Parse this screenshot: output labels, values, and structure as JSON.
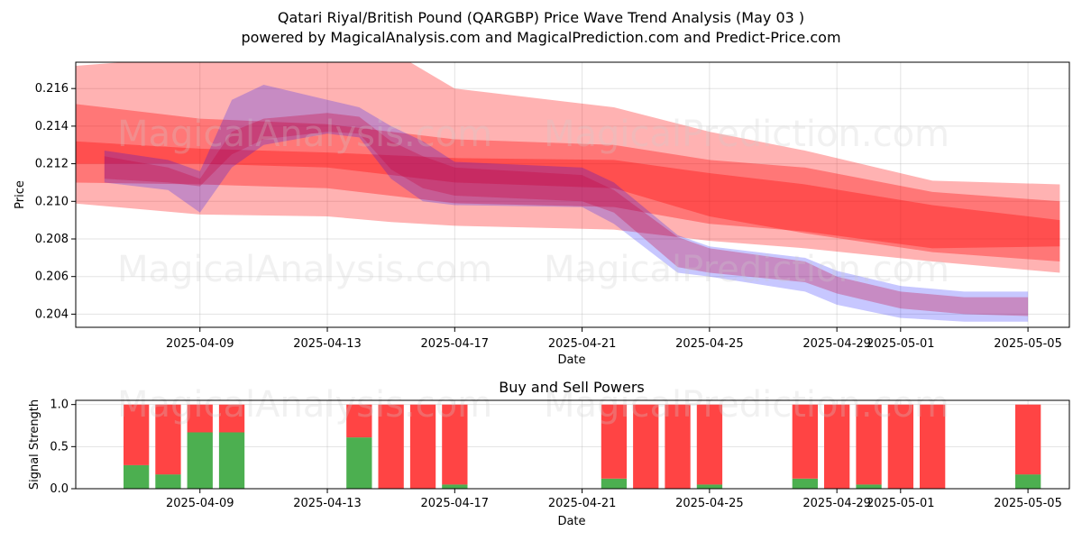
{
  "title_line1": "Qatari Riyal/British Pound (QARGBP) Price Wave Trend Analysis (May 03 )",
  "title_line2": "powered by MagicalAnalysis.com and MagicalPrediction.com and Predict-Price.com",
  "watermarks": [
    "MagicalAnalysis.com",
    "MagicalPrediction.com"
  ],
  "colors": {
    "buy": "#4caf50",
    "sell": "#ff4444",
    "band_red": "#ff0000",
    "band_blue": "#0000ff"
  },
  "chart_data": [
    {
      "type": "area",
      "xlabel": "Date",
      "ylabel": "Price",
      "x_range": [
        "2025-04-05",
        "2025-05-06"
      ],
      "ylim": [
        0.2033,
        0.2174
      ],
      "x_ticks": [
        "2025-04-09",
        "2025-04-13",
        "2025-04-17",
        "2025-04-21",
        "2025-04-25",
        "2025-04-29",
        "2025-05-01",
        "2025-05-05"
      ],
      "y_ticks": [
        "0.204",
        "0.206",
        "0.208",
        "0.210",
        "0.212",
        "0.214",
        "0.216"
      ],
      "grid": true,
      "red_bands": [
        {
          "x": [
            "2025-04-05",
            "2025-04-09",
            "2025-04-13",
            "2025-04-15",
            "2025-04-17",
            "2025-04-22",
            "2025-04-25",
            "2025-04-28",
            "2025-05-02",
            "2025-05-06"
          ],
          "lower": [
            0.2099,
            0.2093,
            0.2092,
            0.2089,
            0.2087,
            0.2085,
            0.2079,
            0.2075,
            0.2068,
            0.2062
          ],
          "upper": [
            0.2172,
            0.2177,
            0.218,
            0.218,
            0.216,
            0.215,
            0.2137,
            0.2127,
            0.2111,
            0.2109
          ]
        },
        {
          "x": [
            "2025-04-05",
            "2025-04-09",
            "2025-04-13",
            "2025-04-17",
            "2025-04-22",
            "2025-04-25",
            "2025-04-28",
            "2025-05-02",
            "2025-05-06"
          ],
          "lower": [
            0.212,
            0.212,
            0.2118,
            0.211,
            0.2107,
            0.2092,
            0.2083,
            0.2073,
            0.2068
          ],
          "upper": [
            0.2152,
            0.2144,
            0.2141,
            0.2133,
            0.213,
            0.2122,
            0.2118,
            0.2105,
            0.21
          ]
        },
        {
          "x": [
            "2025-04-05",
            "2025-04-09",
            "2025-04-13",
            "2025-04-17",
            "2025-04-22",
            "2025-04-25",
            "2025-04-28",
            "2025-05-02",
            "2025-05-06"
          ],
          "lower": [
            0.211,
            0.2109,
            0.2107,
            0.2099,
            0.2097,
            0.2088,
            0.2084,
            0.2075,
            0.2076
          ],
          "upper": [
            0.2132,
            0.2128,
            0.2126,
            0.2123,
            0.2122,
            0.2115,
            0.2109,
            0.2098,
            0.209
          ]
        }
      ],
      "wave_bands": [
        {
          "x": [
            "2025-04-06",
            "2025-04-08",
            "2025-04-09",
            "2025-04-10",
            "2025-04-11",
            "2025-04-13",
            "2025-04-14",
            "2025-04-15",
            "2025-04-16",
            "2025-04-17",
            "2025-04-21",
            "2025-04-22",
            "2025-04-24",
            "2025-04-25",
            "2025-04-28",
            "2025-04-29",
            "2025-05-01",
            "2025-05-03",
            "2025-05-05"
          ],
          "lower": [
            0.2112,
            0.211,
            0.2108,
            0.2125,
            0.2133,
            0.2137,
            0.2136,
            0.2117,
            0.2107,
            0.2103,
            0.21,
            0.2094,
            0.2065,
            0.2062,
            0.2057,
            0.2051,
            0.2043,
            0.204,
            0.2039
          ],
          "upper": [
            0.2124,
            0.2118,
            0.2112,
            0.2137,
            0.2144,
            0.2147,
            0.2145,
            0.2132,
            0.2124,
            0.2118,
            0.2114,
            0.2106,
            0.2081,
            0.2075,
            0.2068,
            0.206,
            0.2052,
            0.2049,
            0.2049
          ],
          "color": "red"
        },
        {
          "x": [
            "2025-04-06",
            "2025-04-08",
            "2025-04-09",
            "2025-04-10",
            "2025-04-11",
            "2025-04-13",
            "2025-04-14",
            "2025-04-15",
            "2025-04-16",
            "2025-04-17",
            "2025-04-21",
            "2025-04-22",
            "2025-04-24",
            "2025-04-25",
            "2025-04-28",
            "2025-04-29",
            "2025-05-01",
            "2025-05-03",
            "2025-05-05"
          ],
          "lower": [
            0.211,
            0.2106,
            0.2094,
            0.2118,
            0.213,
            0.2136,
            0.2134,
            0.2112,
            0.21,
            0.2098,
            0.2097,
            0.2088,
            0.2062,
            0.206,
            0.2052,
            0.2045,
            0.2038,
            0.2036,
            0.2036
          ],
          "upper": [
            0.2127,
            0.2122,
            0.2116,
            0.2154,
            0.2162,
            0.2154,
            0.215,
            0.214,
            0.2132,
            0.2121,
            0.2118,
            0.211,
            0.2082,
            0.2076,
            0.207,
            0.2063,
            0.2055,
            0.2052,
            0.2052
          ],
          "color": "blue"
        }
      ]
    },
    {
      "type": "bar",
      "title": "Buy and Sell Powers",
      "xlabel": "Date",
      "ylabel": "Signal Strength",
      "ylim": [
        0,
        1.05
      ],
      "y_ticks": [
        "0.0",
        "0.5",
        "1.0"
      ],
      "x_ticks": [
        "2025-04-09",
        "2025-04-13",
        "2025-04-17",
        "2025-04-21",
        "2025-04-25",
        "2025-04-29",
        "2025-05-01",
        "2025-05-05"
      ],
      "dates": [
        "2025-04-07",
        "2025-04-08",
        "2025-04-09",
        "2025-04-10",
        "2025-04-14",
        "2025-04-15",
        "2025-04-16",
        "2025-04-17",
        "2025-04-22",
        "2025-04-23",
        "2025-04-24",
        "2025-04-25",
        "2025-04-28",
        "2025-04-29",
        "2025-04-30",
        "2025-05-01",
        "2025-05-02",
        "2025-05-05"
      ],
      "buy": [
        0.28,
        0.17,
        0.67,
        0.67,
        0.61,
        0.0,
        0.0,
        0.05,
        0.12,
        0.0,
        0.0,
        0.05,
        0.12,
        0.0,
        0.05,
        0.0,
        0.0,
        0.17
      ],
      "sell": [
        0.72,
        0.83,
        0.33,
        0.33,
        0.39,
        1.0,
        1.0,
        0.95,
        0.88,
        1.0,
        1.0,
        0.95,
        0.88,
        1.0,
        0.95,
        1.0,
        1.0,
        0.83
      ]
    }
  ]
}
